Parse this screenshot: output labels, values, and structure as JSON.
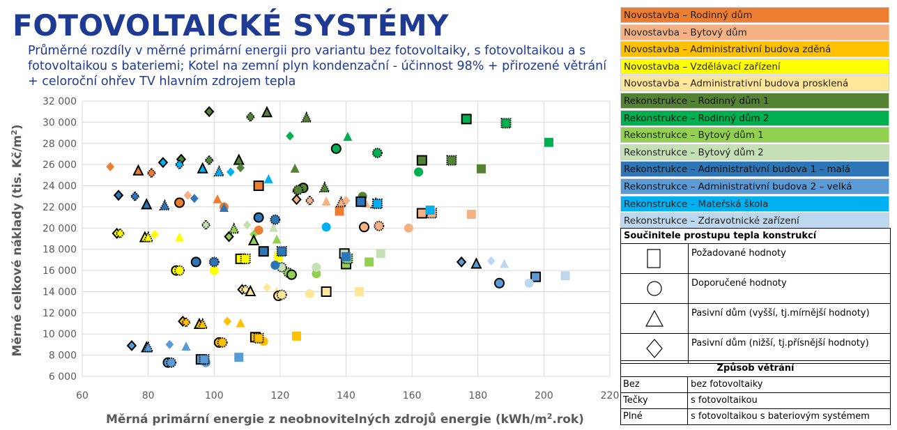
{
  "header": {
    "title": "FOTOVOLTAICKÉ SYSTÉMY",
    "subtitle": "Průměrné rozdíly v měrné primární energii pro variantu bez fotovoltaiky, s fotovoltaikou a s fotovoltaikou s bateriemi; Kotel na zemní plyn kondenzační - účinnost 98% + přirozené větrání + celoroční ohřev TV hlavním zdrojem tepla"
  },
  "legend": {
    "items": [
      {
        "label": "Novostavba – Rodinný dům",
        "color": "#ed7d31"
      },
      {
        "label": "Novostavba – Bytový dům",
        "color": "#f4b183"
      },
      {
        "label": "Novostavba – Administrativní budova zděná",
        "color": "#ffc000"
      },
      {
        "label": "Novostavba – Vzdělávací zařízení",
        "color": "#ffff00"
      },
      {
        "label": "Novostavba – Administrativní budova prosklená",
        "color": "#ffe699"
      },
      {
        "label": "Rekonstrukce – Rodinný dům 1",
        "color": "#548235"
      },
      {
        "label": "Rekonstrukce – Rodinný dům 2",
        "color": "#00b050"
      },
      {
        "label": "Rekonstrukce – Bytový dům 1",
        "color": "#92d050"
      },
      {
        "label": "Rekonstrukce – Bytový dům 2",
        "color": "#c5e0b4"
      },
      {
        "label": "Rekonstrukce – Administrativní budova 1 – malá",
        "color": "#2e75b6"
      },
      {
        "label": "Rekonstrukce – Administrativní budova 2 – velká",
        "color": "#5b9bd5"
      },
      {
        "label": "Rekonstrukce – Mateřská škola",
        "color": "#00b0f0"
      },
      {
        "label": "Rekonstrukce – Zdravotnické zařízení",
        "color": "#bdd7ee"
      }
    ]
  },
  "uvalues": {
    "header": "Součinitele prostupu tepla konstrukcí",
    "rows": [
      {
        "shape": "square",
        "label": "Požadované hodnoty"
      },
      {
        "shape": "circle",
        "label": "Doporučené hodnoty"
      },
      {
        "shape": "triangle",
        "label": "Pasivní dům (vyšší, tj.mírnější hodnoty)"
      },
      {
        "shape": "diamond",
        "label": "Pasivní dům (nižší, tj.přísnější hodnoty)"
      }
    ]
  },
  "ventilation": {
    "header": "Způsob větrání",
    "rows": [
      {
        "key": "Bez",
        "value": "bez fotovoltaiky"
      },
      {
        "key": "Tečky",
        "value": "s fotovoltaikou"
      },
      {
        "key": "Plné",
        "value": "s fotovoltaikou s bateriovým systémem"
      }
    ]
  },
  "chart_data": {
    "type": "scatter",
    "xlabel": "Měrná primární energie z neobnovitelných zdrojů energie (kWh/m2.rok)",
    "ylabel": "Měrné celkové náklady (tis. Kč/m2)",
    "xlim": [
      60,
      220
    ],
    "ylim": [
      6000,
      32000
    ],
    "xticks": [
      "60",
      "80",
      "100",
      "120",
      "140",
      "160",
      "180",
      "200",
      "220"
    ],
    "yticks": [
      "6 000",
      "8 000",
      "10 000",
      "12 000",
      "14 000",
      "16 000",
      "18 000",
      "20 000",
      "22 000",
      "24 000",
      "26 000",
      "28 000",
      "30 000",
      "32 000"
    ],
    "grid": true,
    "marker_styles": {
      "Bez": "solid fill, no outline",
      "Tečky": "dotted black outline",
      "Plné": "solid black outline"
    },
    "points": [
      {
        "x": 68.5,
        "y": 25800,
        "s": "diamond",
        "c": 0,
        "v": "Bez"
      },
      {
        "x": 77,
        "y": 25400,
        "s": "triangle",
        "c": 0,
        "v": "Plné"
      },
      {
        "x": 81,
        "y": 25200,
        "s": "diamond",
        "c": 0,
        "v": "Tečky"
      },
      {
        "x": 89.5,
        "y": 22400,
        "s": "circle",
        "c": 0,
        "v": "Plné"
      },
      {
        "x": 92,
        "y": 23100,
        "s": "diamond",
        "c": 1,
        "v": "Bez"
      },
      {
        "x": 101,
        "y": 22700,
        "s": "triangle",
        "c": 0,
        "v": "Bez"
      },
      {
        "x": 103,
        "y": 22000,
        "s": "circle",
        "c": 0,
        "v": "Bez"
      },
      {
        "x": 113.5,
        "y": 24000,
        "s": "square",
        "c": 0,
        "v": "Plné"
      },
      {
        "x": 113.5,
        "y": 19800,
        "s": "circle",
        "c": 0,
        "v": "Bez"
      },
      {
        "x": 125,
        "y": 23500,
        "s": "diamond",
        "c": 0,
        "v": "Tečky"
      },
      {
        "x": 134,
        "y": 22500,
        "s": "triangle",
        "c": 1,
        "v": "Bez"
      },
      {
        "x": 138,
        "y": 21600,
        "s": "square",
        "c": 0,
        "v": "Bez"
      },
      {
        "x": 138.5,
        "y": 22400,
        "s": "triangle",
        "c": 1,
        "v": "Tečky"
      },
      {
        "x": 140,
        "y": 22600,
        "s": "diamond",
        "c": 1,
        "v": "Bez"
      },
      {
        "x": 146,
        "y": 22300,
        "s": "triangle",
        "c": 1,
        "v": "Bez"
      },
      {
        "x": 149,
        "y": 22300,
        "s": "triangle",
        "c": 1,
        "v": "Tečky"
      },
      {
        "x": 145.5,
        "y": 20100,
        "s": "circle",
        "c": 1,
        "v": "Plné"
      },
      {
        "x": 150,
        "y": 20200,
        "s": "circle",
        "c": 1,
        "v": "Tečky"
      },
      {
        "x": 159,
        "y": 20000,
        "s": "circle",
        "c": 1,
        "v": "Bez"
      },
      {
        "x": 163,
        "y": 21400,
        "s": "square",
        "c": 1,
        "v": "Plné"
      },
      {
        "x": 166,
        "y": 21400,
        "s": "square",
        "c": 1,
        "v": "Tečky"
      },
      {
        "x": 178,
        "y": 21300,
        "s": "square",
        "c": 1,
        "v": "Bez"
      },
      {
        "x": 125,
        "y": 22700,
        "s": "diamond",
        "c": 1,
        "v": "Plné"
      },
      {
        "x": 129,
        "y": 22600,
        "s": "diamond",
        "c": 1,
        "v": "Tečky"
      },
      {
        "x": 70.5,
        "y": 19500,
        "s": "diamond",
        "c": 3,
        "v": "Plné"
      },
      {
        "x": 71.5,
        "y": 19500,
        "s": "diamond",
        "c": 3,
        "v": "Tečky"
      },
      {
        "x": 79,
        "y": 19100,
        "s": "triangle",
        "c": 3,
        "v": "Plné"
      },
      {
        "x": 80,
        "y": 19100,
        "s": "triangle",
        "c": 3,
        "v": "Tečky"
      },
      {
        "x": 82,
        "y": 19400,
        "s": "diamond",
        "c": 3,
        "v": "Bez"
      },
      {
        "x": 89.5,
        "y": 19100,
        "s": "triangle",
        "c": 3,
        "v": "Bez"
      },
      {
        "x": 88.5,
        "y": 16000,
        "s": "circle",
        "c": 3,
        "v": "Plné"
      },
      {
        "x": 89.5,
        "y": 16000,
        "s": "circle",
        "c": 3,
        "v": "Tečky"
      },
      {
        "x": 100,
        "y": 16000,
        "s": "circle",
        "c": 3,
        "v": "Bez"
      },
      {
        "x": 108,
        "y": 17100,
        "s": "square",
        "c": 3,
        "v": "Plné"
      },
      {
        "x": 109.5,
        "y": 17100,
        "s": "square",
        "c": 3,
        "v": "Tečky"
      },
      {
        "x": 119.5,
        "y": 17300,
        "s": "square",
        "c": 3,
        "v": "Bez"
      },
      {
        "x": 90.5,
        "y": 11200,
        "s": "diamond",
        "c": 2,
        "v": "Plné"
      },
      {
        "x": 91.5,
        "y": 11100,
        "s": "diamond",
        "c": 2,
        "v": "Tečky"
      },
      {
        "x": 95.5,
        "y": 10900,
        "s": "triangle",
        "c": 2,
        "v": "Plné"
      },
      {
        "x": 96.5,
        "y": 10900,
        "s": "triangle",
        "c": 2,
        "v": "Tečky"
      },
      {
        "x": 104,
        "y": 11200,
        "s": "diamond",
        "c": 2,
        "v": "Bez"
      },
      {
        "x": 108,
        "y": 11000,
        "s": "triangle",
        "c": 2,
        "v": "Bez"
      },
      {
        "x": 101.5,
        "y": 9200,
        "s": "circle",
        "c": 2,
        "v": "Plné"
      },
      {
        "x": 102.5,
        "y": 9200,
        "s": "circle",
        "c": 2,
        "v": "Tečky"
      },
      {
        "x": 115,
        "y": 9300,
        "s": "circle",
        "c": 2,
        "v": "Bez"
      },
      {
        "x": 112.5,
        "y": 9700,
        "s": "square",
        "c": 2,
        "v": "Plné"
      },
      {
        "x": 113.5,
        "y": 9600,
        "s": "square",
        "c": 2,
        "v": "Tečky"
      },
      {
        "x": 125,
        "y": 9800,
        "s": "square",
        "c": 2,
        "v": "Bez"
      },
      {
        "x": 108.5,
        "y": 14200,
        "s": "diamond",
        "c": 4,
        "v": "Plné"
      },
      {
        "x": 109.5,
        "y": 14200,
        "s": "diamond",
        "c": 4,
        "v": "Tečky"
      },
      {
        "x": 111,
        "y": 14000,
        "s": "triangle",
        "c": 4,
        "v": "Plné"
      },
      {
        "x": 116,
        "y": 14400,
        "s": "diamond",
        "c": 4,
        "v": "Bez"
      },
      {
        "x": 119,
        "y": 14000,
        "s": "triangle",
        "c": 4,
        "v": "Bez"
      },
      {
        "x": 119.5,
        "y": 13600,
        "s": "circle",
        "c": 4,
        "v": "Plné"
      },
      {
        "x": 120.5,
        "y": 13700,
        "s": "circle",
        "c": 4,
        "v": "Tečky"
      },
      {
        "x": 129,
        "y": 13800,
        "s": "circle",
        "c": 4,
        "v": "Bez"
      },
      {
        "x": 134,
        "y": 14000,
        "s": "square",
        "c": 4,
        "v": "Plné"
      },
      {
        "x": 144,
        "y": 14000,
        "s": "square",
        "c": 4,
        "v": "Bez"
      },
      {
        "x": 98.5,
        "y": 31000,
        "s": "diamond",
        "c": 5,
        "v": "Plné"
      },
      {
        "x": 111,
        "y": 30500,
        "s": "diamond",
        "c": 5,
        "v": "Tečky"
      },
      {
        "x": 116,
        "y": 30900,
        "s": "triangle",
        "c": 5,
        "v": "Plné"
      },
      {
        "x": 128,
        "y": 30400,
        "s": "triangle",
        "c": 5,
        "v": "Tečky"
      },
      {
        "x": 90,
        "y": 26500,
        "s": "diamond",
        "c": 5,
        "v": "Plné"
      },
      {
        "x": 98.5,
        "y": 26400,
        "s": "diamond",
        "c": 5,
        "v": "Tečky"
      },
      {
        "x": 107.5,
        "y": 26400,
        "s": "triangle",
        "c": 5,
        "v": "Plné"
      },
      {
        "x": 108,
        "y": 25700,
        "s": "diamond",
        "c": 5,
        "v": "Bez"
      },
      {
        "x": 124.5,
        "y": 25600,
        "s": "triangle",
        "c": 5,
        "v": "Bez"
      },
      {
        "x": 127,
        "y": 23800,
        "s": "circle",
        "c": 5,
        "v": "Plné"
      },
      {
        "x": 125.5,
        "y": 23600,
        "s": "circle",
        "c": 5,
        "v": "Tečky"
      },
      {
        "x": 133.5,
        "y": 23800,
        "s": "triangle",
        "c": 5,
        "v": "Tečky"
      },
      {
        "x": 145,
        "y": 23000,
        "s": "circle",
        "c": 5,
        "v": "Bez"
      },
      {
        "x": 163,
        "y": 26400,
        "s": "square",
        "c": 5,
        "v": "Plné"
      },
      {
        "x": 172,
        "y": 26400,
        "s": "square",
        "c": 5,
        "v": "Tečky"
      },
      {
        "x": 181,
        "y": 25600,
        "s": "square",
        "c": 5,
        "v": "Bez"
      },
      {
        "x": 123,
        "y": 28700,
        "s": "diamond",
        "c": 6,
        "v": "Bez"
      },
      {
        "x": 140.5,
        "y": 28600,
        "s": "triangle",
        "c": 6,
        "v": "Bez"
      },
      {
        "x": 137,
        "y": 27500,
        "s": "circle",
        "c": 6,
        "v": "Plné"
      },
      {
        "x": 149.5,
        "y": 27100,
        "s": "circle",
        "c": 6,
        "v": "Tečky"
      },
      {
        "x": 162,
        "y": 25300,
        "s": "circle",
        "c": 6,
        "v": "Bez"
      },
      {
        "x": 176.5,
        "y": 30300,
        "s": "square",
        "c": 6,
        "v": "Plné"
      },
      {
        "x": 188.5,
        "y": 29900,
        "s": "square",
        "c": 6,
        "v": "Tečky"
      },
      {
        "x": 201.5,
        "y": 28100,
        "s": "square",
        "c": 6,
        "v": "Bez"
      },
      {
        "x": 104.5,
        "y": 19200,
        "s": "diamond",
        "c": 7,
        "v": "Plné"
      },
      {
        "x": 106,
        "y": 19900,
        "s": "triangle",
        "c": 7,
        "v": "Tečky"
      },
      {
        "x": 112,
        "y": 19400,
        "s": "diamond",
        "c": 7,
        "v": "Bez"
      },
      {
        "x": 112,
        "y": 18800,
        "s": "triangle",
        "c": 7,
        "v": "Plné"
      },
      {
        "x": 119,
        "y": 18900,
        "s": "triangle",
        "c": 7,
        "v": "Bez"
      },
      {
        "x": 122.5,
        "y": 15800,
        "s": "circle",
        "c": 7,
        "v": "Tečky"
      },
      {
        "x": 123.5,
        "y": 15600,
        "s": "circle",
        "c": 7,
        "v": "Plné"
      },
      {
        "x": 131,
        "y": 15700,
        "s": "circle",
        "c": 7,
        "v": "Bez"
      },
      {
        "x": 140,
        "y": 16600,
        "s": "square",
        "c": 7,
        "v": "Plné"
      },
      {
        "x": 140.5,
        "y": 17100,
        "s": "square",
        "c": 7,
        "v": "Tečky"
      },
      {
        "x": 147,
        "y": 16800,
        "s": "square",
        "c": 7,
        "v": "Bez"
      },
      {
        "x": 97.5,
        "y": 20300,
        "s": "diamond",
        "c": 8,
        "v": "Tečky"
      },
      {
        "x": 110,
        "y": 20300,
        "s": "diamond",
        "c": 8,
        "v": "Bez"
      },
      {
        "x": 118,
        "y": 20000,
        "s": "triangle",
        "c": 8,
        "v": "Bez"
      },
      {
        "x": 120.5,
        "y": 16300,
        "s": "circle",
        "c": 8,
        "v": "Tečky"
      },
      {
        "x": 131,
        "y": 16300,
        "s": "circle",
        "c": 8,
        "v": "Bez"
      },
      {
        "x": 139.5,
        "y": 17600,
        "s": "square",
        "c": 8,
        "v": "Plné"
      },
      {
        "x": 150.5,
        "y": 17600,
        "s": "square",
        "c": 8,
        "v": "Bez"
      },
      {
        "x": 71,
        "y": 23100,
        "s": "diamond",
        "c": 9,
        "v": "Plné"
      },
      {
        "x": 76,
        "y": 23000,
        "s": "diamond",
        "c": 9,
        "v": "Tečky"
      },
      {
        "x": 79.5,
        "y": 22200,
        "s": "triangle",
        "c": 9,
        "v": "Plné"
      },
      {
        "x": 85,
        "y": 22100,
        "s": "triangle",
        "c": 9,
        "v": "Tečky"
      },
      {
        "x": 94,
        "y": 22800,
        "s": "diamond",
        "c": 9,
        "v": "Bez"
      },
      {
        "x": 103,
        "y": 21900,
        "s": "triangle",
        "c": 9,
        "v": "Bez"
      },
      {
        "x": 113.5,
        "y": 21000,
        "s": "circle",
        "c": 9,
        "v": "Plné"
      },
      {
        "x": 118.5,
        "y": 20800,
        "s": "circle",
        "c": 9,
        "v": "Tečky"
      },
      {
        "x": 115,
        "y": 17800,
        "s": "square",
        "c": 9,
        "v": "Plné"
      },
      {
        "x": 120.5,
        "y": 17800,
        "s": "square",
        "c": 9,
        "v": "Tečky"
      },
      {
        "x": 118.5,
        "y": 16500,
        "s": "circle",
        "c": 9,
        "v": "Bez"
      },
      {
        "x": 144.5,
        "y": 22500,
        "s": "square",
        "c": 9,
        "v": "Plné"
      },
      {
        "x": 140,
        "y": 17300,
        "s": "square",
        "c": 9,
        "v": "Bez"
      },
      {
        "x": 94.5,
        "y": 16800,
        "s": "circle",
        "c": 9,
        "v": "Plné"
      },
      {
        "x": 100,
        "y": 16800,
        "s": "circle",
        "c": 9,
        "v": "Tečky"
      },
      {
        "x": 75,
        "y": 8900,
        "s": "diamond",
        "c": 10,
        "v": "Plné"
      },
      {
        "x": 79.5,
        "y": 8700,
        "s": "triangle",
        "c": 10,
        "v": "Plné"
      },
      {
        "x": 80,
        "y": 8700,
        "s": "triangle",
        "c": 10,
        "v": "Tečky"
      },
      {
        "x": 86.5,
        "y": 9000,
        "s": "diamond",
        "c": 10,
        "v": "Bez"
      },
      {
        "x": 91.5,
        "y": 8800,
        "s": "triangle",
        "c": 10,
        "v": "Bez"
      },
      {
        "x": 86,
        "y": 7300,
        "s": "circle",
        "c": 10,
        "v": "Plné"
      },
      {
        "x": 87,
        "y": 7300,
        "s": "circle",
        "c": 10,
        "v": "Tečky"
      },
      {
        "x": 97.5,
        "y": 7300,
        "s": "circle",
        "c": 10,
        "v": "Bez"
      },
      {
        "x": 96,
        "y": 7600,
        "s": "square",
        "c": 10,
        "v": "Plné"
      },
      {
        "x": 97,
        "y": 7600,
        "s": "square",
        "c": 10,
        "v": "Tečky"
      },
      {
        "x": 107.5,
        "y": 7800,
        "s": "square",
        "c": 10,
        "v": "Bez"
      },
      {
        "x": 175,
        "y": 16800,
        "s": "diamond",
        "c": 10,
        "v": "Plné"
      },
      {
        "x": 179.5,
        "y": 16600,
        "s": "triangle",
        "c": 10,
        "v": "Plné"
      },
      {
        "x": 186.5,
        "y": 14800,
        "s": "circle",
        "c": 10,
        "v": "Plné"
      },
      {
        "x": 197.5,
        "y": 15400,
        "s": "square",
        "c": 10,
        "v": "Plné"
      },
      {
        "x": 84.5,
        "y": 26200,
        "s": "diamond",
        "c": 11,
        "v": "Plné"
      },
      {
        "x": 89.5,
        "y": 26000,
        "s": "diamond",
        "c": 11,
        "v": "Tečky"
      },
      {
        "x": 96.5,
        "y": 25600,
        "s": "triangle",
        "c": 11,
        "v": "Plné"
      },
      {
        "x": 101.5,
        "y": 25300,
        "s": "triangle",
        "c": 11,
        "v": "Tečky"
      },
      {
        "x": 105,
        "y": 25300,
        "s": "diamond",
        "c": 11,
        "v": "Bez"
      },
      {
        "x": 116.5,
        "y": 24600,
        "s": "triangle",
        "c": 11,
        "v": "Bez"
      },
      {
        "x": 134,
        "y": 20100,
        "s": "circle",
        "c": 11,
        "v": "Bez"
      },
      {
        "x": 149.5,
        "y": 22300,
        "s": "square",
        "c": 11,
        "v": "Tečky"
      },
      {
        "x": 165.5,
        "y": 21700,
        "s": "square",
        "c": 11,
        "v": "Bez"
      },
      {
        "x": 184,
        "y": 16900,
        "s": "diamond",
        "c": 12,
        "v": "Bez"
      },
      {
        "x": 188,
        "y": 16600,
        "s": "triangle",
        "c": 12,
        "v": "Bez"
      },
      {
        "x": 195.5,
        "y": 14800,
        "s": "circle",
        "c": 12,
        "v": "Bez"
      },
      {
        "x": 206.5,
        "y": 15500,
        "s": "square",
        "c": 12,
        "v": "Bez"
      }
    ]
  }
}
